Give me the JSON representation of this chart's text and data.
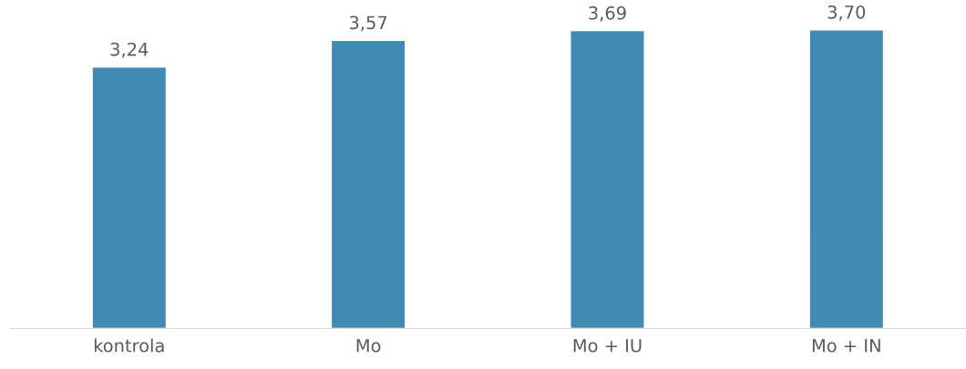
{
  "chart_data": {
    "type": "bar",
    "categories": [
      "kontrola",
      "Mo",
      "Mo + IU",
      "Mo + IN"
    ],
    "values": [
      3.24,
      3.57,
      3.69,
      3.7
    ],
    "value_labels": [
      "3,24",
      "3,57",
      "3,69",
      "3,70"
    ],
    "color": "#418ab3",
    "tick_labels": "x",
    "grid": false,
    "legend": false
  }
}
